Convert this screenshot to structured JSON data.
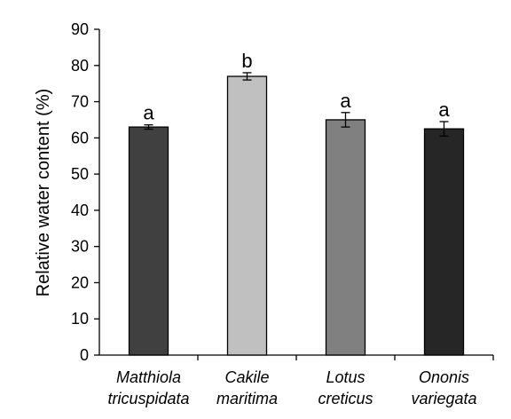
{
  "chart_data": {
    "type": "bar",
    "title": "",
    "ylabel": "Relative water content (%)",
    "xlabel": "",
    "ylim": [
      0,
      90
    ],
    "yticks": [
      0,
      10,
      20,
      30,
      40,
      50,
      60,
      70,
      80,
      90
    ],
    "grid": false,
    "categories": [
      {
        "line1": "Matthiola",
        "line2": "tricuspidata"
      },
      {
        "line1": "Cakile",
        "line2": "maritima"
      },
      {
        "line1": "Lotus",
        "line2": "creticus"
      },
      {
        "line1": "Ononis",
        "line2": "variegata"
      }
    ],
    "values": [
      63,
      77,
      65,
      62.5
    ],
    "errors": [
      0.6,
      1.0,
      2.0,
      2.0
    ],
    "significance": [
      "a",
      "b",
      "a",
      "a"
    ],
    "colors": [
      "#404040",
      "#c0c0c0",
      "#808080",
      "#262626"
    ]
  }
}
